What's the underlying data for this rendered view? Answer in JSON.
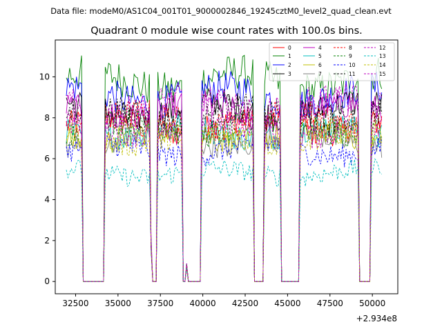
{
  "page": {
    "suptitle": "Data file: modeM0/AS1C04_001T01_9000002846_19245cztM0_level2_quad_clean.evt"
  },
  "chart_data": {
    "type": "line",
    "title": "Quadrant 0 module wise count rates with 100.0s bins.",
    "xlabel": "",
    "ylabel": "",
    "x_offset_label": "+2.934e8",
    "xlim": [
      31300,
      51500
    ],
    "ylim": [
      -0.6,
      11.8
    ],
    "x_ticks": [
      32500,
      35000,
      37500,
      40000,
      42500,
      45000,
      47500,
      50000
    ],
    "x_tick_labels": [
      "32500",
      "35000",
      "37500",
      "40000",
      "42500",
      "45000",
      "47500",
      "50000"
    ],
    "y_ticks": [
      0,
      2,
      4,
      6,
      8,
      10
    ],
    "y_tick_labels": [
      "0",
      "2",
      "4",
      "6",
      "8",
      "10"
    ],
    "legend_position": "upper-right",
    "legend_columns": 4,
    "bin_seconds": 100,
    "x_start": 31950,
    "x_end": 50550,
    "on_intervals": [
      [
        31950,
        32850
      ],
      [
        34200,
        36900
      ],
      [
        37350,
        38800
      ],
      [
        39950,
        42950
      ],
      [
        43600,
        44600
      ],
      [
        45750,
        49150
      ],
      [
        49950,
        50550
      ]
    ],
    "transition_levels": [
      [
        33000,
        1.8
      ],
      [
        36950,
        1.9
      ],
      [
        39050,
        0.8
      ]
    ],
    "series": [
      {
        "name": "0",
        "color": "#ff0000",
        "dash": "solid",
        "mean": 7.6
      },
      {
        "name": "1",
        "color": "#008000",
        "dash": "solid",
        "mean": 9.8
      },
      {
        "name": "2",
        "color": "#0000ff",
        "dash": "solid",
        "mean": 9.1
      },
      {
        "name": "3",
        "color": "#000000",
        "dash": "solid",
        "mean": 8.4
      },
      {
        "name": "4",
        "color": "#bf00bf",
        "dash": "solid",
        "mean": 8.3
      },
      {
        "name": "5",
        "color": "#00bfbf",
        "dash": "solid",
        "mean": 7.3
      },
      {
        "name": "6",
        "color": "#bfbf00",
        "dash": "solid",
        "mean": 7.1
      },
      {
        "name": "7",
        "color": "#7f7f7f",
        "dash": "solid",
        "mean": 6.9
      },
      {
        "name": "8",
        "color": "#ff0000",
        "dash": "dashed",
        "mean": 7.9
      },
      {
        "name": "9",
        "color": "#008000",
        "dash": "dashed",
        "mean": 7.5
      },
      {
        "name": "10",
        "color": "#0000ff",
        "dash": "dashed",
        "mean": 6.4
      },
      {
        "name": "11",
        "color": "#000000",
        "dash": "dashed",
        "mean": 8.1
      },
      {
        "name": "12",
        "color": "#bf00bf",
        "dash": "dashed",
        "mean": 7.4
      },
      {
        "name": "13",
        "color": "#00bfbf",
        "dash": "dashed",
        "mean": 5.3
      },
      {
        "name": "14",
        "color": "#bfbf00",
        "dash": "dashed",
        "mean": 7.0
      },
      {
        "name": "15",
        "color": "#bf00bf",
        "dash": "dashed",
        "mean": 8.6
      }
    ]
  }
}
